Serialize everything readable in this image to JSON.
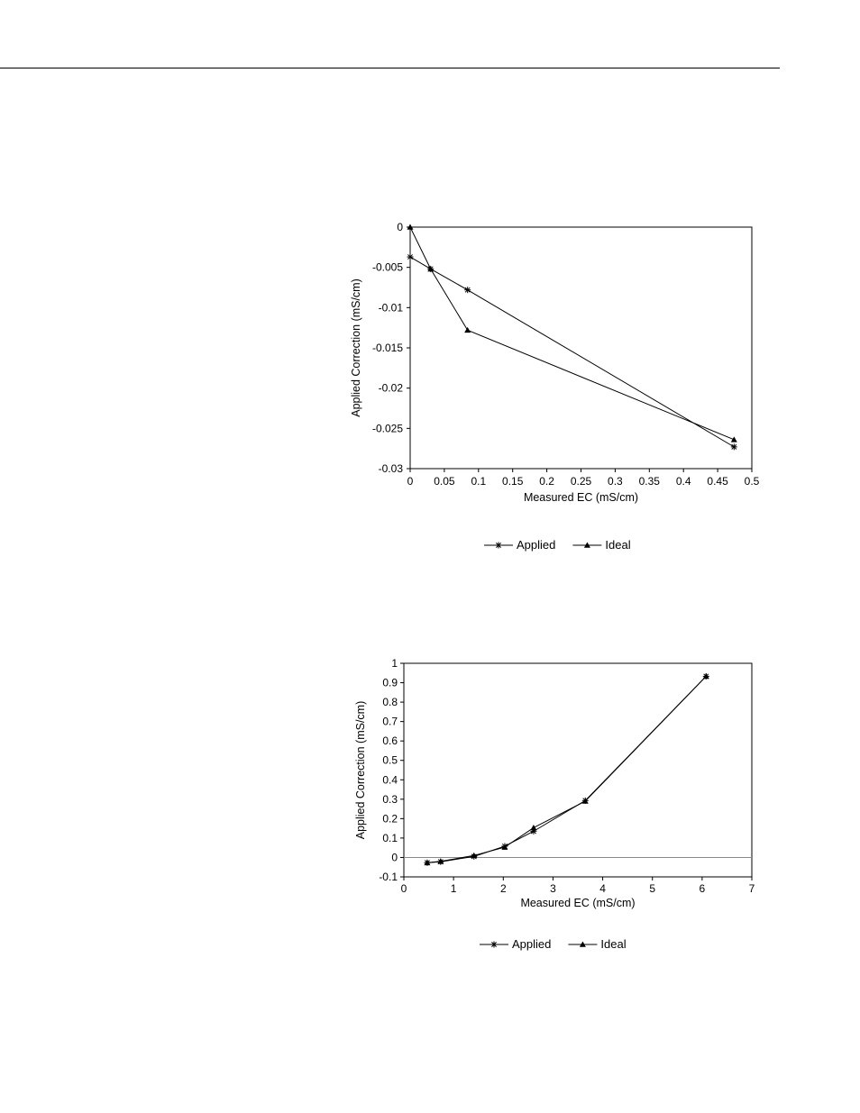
{
  "chart_data": [
    {
      "type": "line",
      "title": "",
      "xlabel": "Measured EC (mS/cm)",
      "ylabel": "Applied Correction (mS/cm)",
      "xlim": [
        0,
        0.5
      ],
      "ylim": [
        -0.03,
        0
      ],
      "xticks": [
        0,
        0.05,
        0.1,
        0.15,
        0.2,
        0.25,
        0.3,
        0.35,
        0.4,
        0.45,
        0.5
      ],
      "xtick_labels": [
        "0",
        "0.05",
        "0.1",
        "0.15",
        "0.2",
        "0.25",
        "0.3",
        "0.35",
        "0.4",
        "0.45",
        "0.5"
      ],
      "yticks": [
        0,
        -0.005,
        -0.01,
        -0.015,
        -0.02,
        -0.025,
        -0.03
      ],
      "ytick_labels": [
        "0",
        "-0.005",
        "-0.01",
        "-0.015",
        "-0.02",
        "-0.025",
        "-0.03"
      ],
      "grid": false,
      "legend": "bottom",
      "series": [
        {
          "name": "Applied",
          "marker": "asterisk",
          "x": [
            0,
            0.03,
            0.084,
            0.474
          ],
          "y": [
            -0.0037,
            -0.0052,
            -0.0078,
            -0.0273
          ]
        },
        {
          "name": "Ideal",
          "marker": "triangle",
          "x": [
            0,
            0.03,
            0.084,
            0.474
          ],
          "y": [
            0,
            -0.0052,
            -0.0128,
            -0.0264
          ]
        }
      ]
    },
    {
      "type": "line",
      "title": "",
      "xlabel": "Measured EC (mS/cm)",
      "ylabel": "Applied Correction (mS/cm)",
      "xlim": [
        0,
        7
      ],
      "ylim": [
        -0.1,
        1
      ],
      "xticks": [
        0,
        1,
        2,
        3,
        4,
        5,
        6,
        7
      ],
      "xtick_labels": [
        "0",
        "1",
        "2",
        "3",
        "4",
        "5",
        "6",
        "7"
      ],
      "yticks": [
        1,
        0.9,
        0.8,
        0.7,
        0.6,
        0.5,
        0.4,
        0.3,
        0.2,
        0.1,
        0,
        -0.1
      ],
      "ytick_labels": [
        "1",
        "0.9",
        "0.8",
        "0.7",
        "0.6",
        "0.5",
        "0.4",
        "0.3",
        "0.2",
        "0.1",
        "0",
        "-0.1"
      ],
      "grid": false,
      "zero_line": true,
      "legend": "bottom",
      "series": [
        {
          "name": "Applied",
          "marker": "asterisk",
          "x": [
            0.47,
            0.74,
            1.41,
            2.03,
            2.61,
            3.65,
            6.08
          ],
          "y": [
            -0.027,
            -0.022,
            0.005,
            0.058,
            0.135,
            0.293,
            0.933
          ]
        },
        {
          "name": "Ideal",
          "marker": "triangle",
          "x": [
            0.47,
            0.74,
            1.41,
            2.03,
            2.61,
            3.65,
            6.08
          ],
          "y": [
            -0.027,
            -0.02,
            0.01,
            0.053,
            0.153,
            0.29,
            0.933
          ]
        }
      ]
    }
  ]
}
